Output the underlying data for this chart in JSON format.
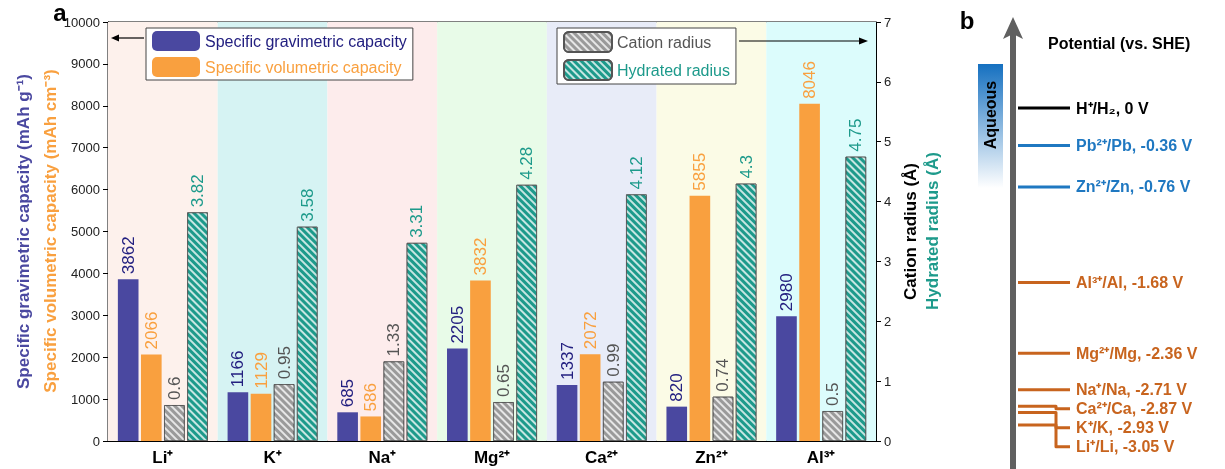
{
  "chart_data": [
    {
      "type": "bar",
      "annotations": [
        "a",
        "Specific volumetric capacity (mAh cm⁻³)",
        "Hydrated radius (Å)"
      ],
      "ylabel": "Specific gravimetric capacity (mAh g⁻¹)",
      "y2label": "Cation radius (Å)",
      "categories": [
        "Li⁺",
        "K⁺",
        "Na⁺",
        "Mg²⁺",
        "Ca²⁺",
        "Zn²⁺",
        "Al³⁺"
      ],
      "series": [
        {
          "name": "Specific gravimetric capacity",
          "color": "#4a48a0",
          "values": [
            3862,
            1166,
            685,
            2205,
            1337,
            820,
            2980
          ]
        },
        {
          "name": "Specific volumetric capacity",
          "color": "#f9a03f",
          "values": [
            2066,
            1129,
            586,
            3832,
            2072,
            5855,
            8046
          ]
        },
        {
          "name": "Cation radius",
          "color": "#9a9a9a",
          "axis": "y2",
          "values": [
            0.6,
            0.95,
            1.33,
            0.65,
            0.99,
            0.74,
            0.5
          ]
        },
        {
          "name": "Hydrated radius",
          "color": "#1d9a8b",
          "axis": "y2",
          "values": [
            3.82,
            3.58,
            3.31,
            4.28,
            4.12,
            4.3,
            4.75
          ]
        }
      ],
      "ylim": [
        0,
        10000
      ],
      "yticks": [
        0,
        1000,
        2000,
        3000,
        4000,
        5000,
        6000,
        7000,
        8000,
        9000,
        10000
      ],
      "y2lim": [
        0,
        7
      ],
      "y2ticks": [
        0,
        1,
        2,
        3,
        4,
        5,
        6,
        7
      ],
      "bands": [
        {
          "axis": "x",
          "from": "Li⁺",
          "to": "Li⁺",
          "color": "#fdf1ec"
        },
        {
          "axis": "x",
          "from": "K⁺",
          "to": "K⁺",
          "color": "#d6f3f3"
        },
        {
          "axis": "x",
          "from": "Na⁺",
          "to": "Na⁺",
          "color": "#fdecec"
        },
        {
          "axis": "x",
          "from": "Mg²⁺",
          "to": "Mg²⁺",
          "color": "#e8fbe8"
        },
        {
          "axis": "x",
          "from": "Ca²⁺",
          "to": "Ca²⁺",
          "color": "#e8ecf8"
        },
        {
          "axis": "x",
          "from": "Zn²⁺",
          "to": "Zn²⁺",
          "color": "#fbfbe6"
        },
        {
          "axis": "x",
          "from": "Al³⁺",
          "to": "Al³⁺",
          "color": "#dcfcfc"
        }
      ],
      "data_labels": true,
      "grid": false,
      "legend": "top"
    },
    {
      "type": "other",
      "title": "Potential (vs. SHE)",
      "annotations": [
        "b",
        "Aqueous"
      ],
      "categories": [
        "H⁺/H₂",
        "Pb²⁺/Pb",
        "Zn²⁺/Zn",
        "Al³⁺/Al",
        "Mg²⁺/Mg",
        "Na⁺/Na",
        "Ca²⁺/Ca",
        "K⁺/K",
        "Li⁺/Li"
      ],
      "value_labels": [
        ", 0 V",
        ", -0.36 V",
        ", -0.76 V",
        ", -1.68 V",
        ", -2.36 V",
        ", -2.71 V",
        ", -2.87 V",
        ", -2.93 V",
        ", -3.05 V"
      ],
      "values": [
        0,
        -0.36,
        -0.76,
        -1.68,
        -2.36,
        -2.71,
        -2.87,
        -2.93,
        -3.05
      ],
      "colors": [
        "#000000",
        "#1f78c1",
        "#1f78c1",
        "#c8641e",
        "#c8641e",
        "#c8641e",
        "#c8641e",
        "#c8641e",
        "#c8641e"
      ]
    }
  ]
}
